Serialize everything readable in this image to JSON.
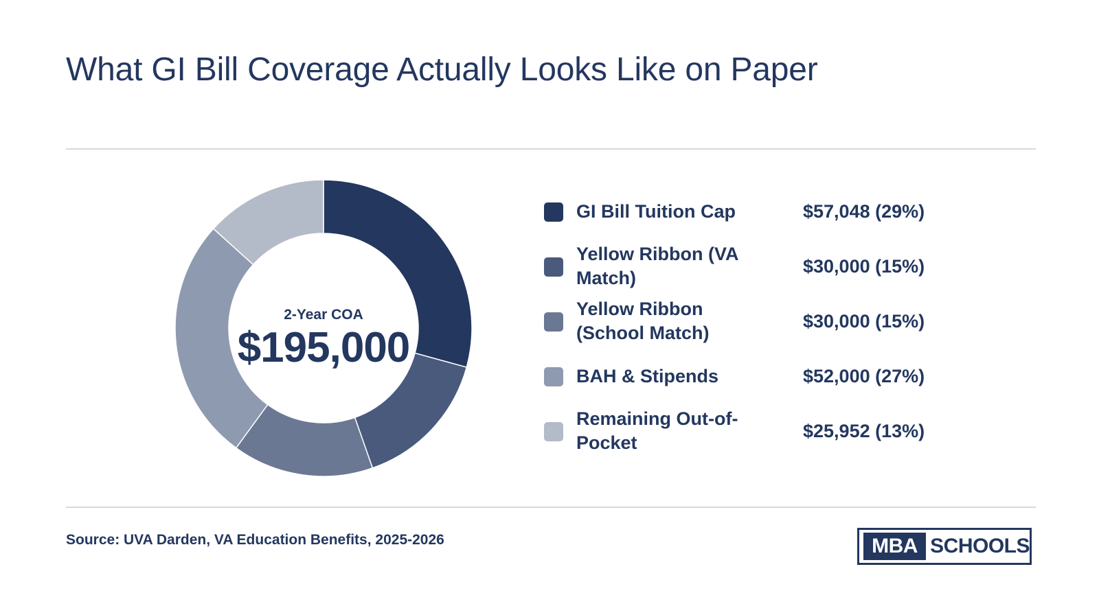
{
  "header": {
    "title": "What GI Bill Coverage Actually Looks Like on Paper"
  },
  "center": {
    "label": "2-Year COA",
    "value": "$195,000"
  },
  "chart_data": {
    "type": "pie",
    "title": "What GI Bill Coverage Actually Looks Like on Paper",
    "center_label": "2-Year COA",
    "center_value": "$195,000",
    "total": 195000,
    "slices": [
      {
        "label": "GI Bill Tuition Cap",
        "value": 57048,
        "display": "$57,048 (29%)",
        "color": "#23375f"
      },
      {
        "label": "Yellow Ribbon (VA Match)",
        "value": 30000,
        "display": "$30,000 (15%)",
        "color": "#495a7c"
      },
      {
        "label": "Yellow Ribbon (School Match)",
        "value": 30000,
        "display": "$30,000 (15%)",
        "color": "#6b7893"
      },
      {
        "label": "BAH & Stipends",
        "value": 52000,
        "display": "$52,000 (27%)",
        "color": "#8e9aaf"
      },
      {
        "label": "Remaining Out-of-Pocket",
        "value": 25952,
        "display": "$25,952 (13%)",
        "color": "#b3bac8"
      }
    ]
  },
  "footer": {
    "source": "Source: UVA Darden, VA Education Benefits, 2025-2026"
  },
  "logo": {
    "left": "MBA",
    "right": "SCHOOLS"
  },
  "colors": {
    "primary": "#23375f",
    "rule": "#d6d9e0"
  }
}
